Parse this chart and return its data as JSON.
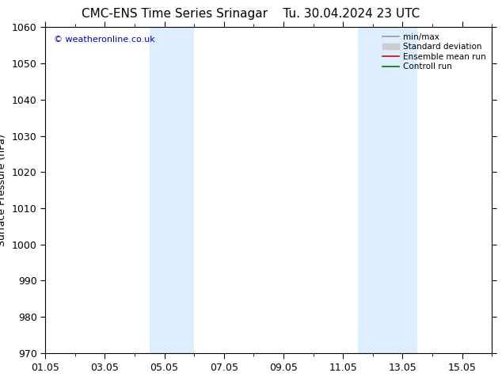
{
  "title": "CMC-ENS Time Series Srinagar",
  "title2": "Tu. 30.04.2024 23 UTC",
  "ylabel": "Surface Pressure (hPa)",
  "ylim": [
    970,
    1060
  ],
  "yticks": [
    970,
    980,
    990,
    1000,
    1010,
    1020,
    1030,
    1040,
    1050,
    1060
  ],
  "xlim": [
    0,
    15
  ],
  "xtick_labels": [
    "01.05",
    "03.05",
    "05.05",
    "07.05",
    "09.05",
    "11.05",
    "13.05",
    "15.05"
  ],
  "xtick_positions": [
    0,
    2,
    4,
    6,
    8,
    10,
    12,
    14
  ],
  "shaded_bands": [
    {
      "xmin": 3.5,
      "xmax": 5.0
    },
    {
      "xmin": 10.5,
      "xmax": 12.5
    }
  ],
  "shaded_color": "#ddeeff",
  "watermark": "© weatheronline.co.uk",
  "watermark_color": "#0000cc",
  "background_color": "#ffffff",
  "legend_entries": [
    {
      "label": "min/max",
      "color": "#999999",
      "lw": 1.2
    },
    {
      "label": "Standard deviation",
      "color": "#cccccc",
      "lw": 8
    },
    {
      "label": "Ensemble mean run",
      "color": "#dd0000",
      "lw": 1.2
    },
    {
      "label": "Controll run",
      "color": "#007700",
      "lw": 1.2
    }
  ],
  "title_fontsize": 11,
  "tick_fontsize": 9,
  "ylabel_fontsize": 9,
  "figwidth": 6.34,
  "figheight": 4.9,
  "dpi": 100
}
